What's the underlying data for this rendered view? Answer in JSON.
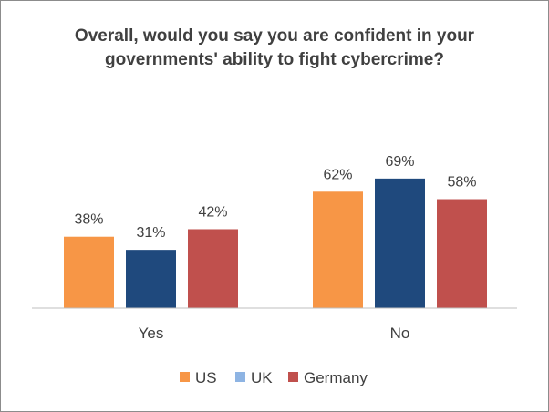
{
  "chart_data": {
    "type": "bar",
    "title_lines": [
      "Overall, would you say you are confident in your",
      "governments' ability to fight cybercrime?"
    ],
    "categories": [
      "Yes",
      "No"
    ],
    "series": [
      {
        "name": "US",
        "color": "#F79646",
        "values": [
          38,
          62
        ],
        "labels": [
          "38%",
          "62%"
        ]
      },
      {
        "name": "UK",
        "color": "#1F497D",
        "values": [
          31,
          69
        ],
        "labels": [
          "31%",
          "69%"
        ]
      },
      {
        "name": "Germany",
        "color": "#C0504D",
        "values": [
          42,
          58
        ],
        "labels": [
          "42%",
          "58%"
        ]
      }
    ],
    "legend_swatch_colors": [
      "#F79646",
      "#8EB4E3",
      "#C0504D"
    ],
    "ylim": [
      0,
      100
    ],
    "grid": false,
    "legend_position": "bottom",
    "axis_color": "#BFBFBF"
  }
}
